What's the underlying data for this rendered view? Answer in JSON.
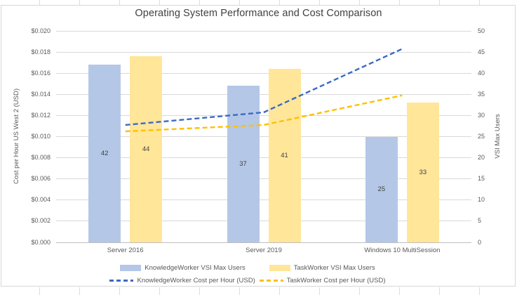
{
  "title": "Operating System Performance and Cost Comparison",
  "chart_data": {
    "type": "combo-bar-line",
    "title": "Operating System Performance and Cost Comparison",
    "categories": [
      "Server 2016",
      "Server 2019",
      "Windows 10 MultiSession"
    ],
    "bar_series": [
      {
        "name": "KnowledgeWorker VSI Max Users",
        "axis": "right",
        "color": "#B4C7E7",
        "values": [
          42,
          37,
          25
        ]
      },
      {
        "name": "TaskWorker VSI Max Users",
        "axis": "right",
        "color": "#FFE699",
        "values": [
          44,
          41,
          33
        ]
      }
    ],
    "line_series": [
      {
        "name": "KnowledgeWorker Cost per Hour (USD)",
        "axis": "left",
        "color": "#3A6AC5",
        "dash": true,
        "values": [
          0.0111,
          0.0123,
          0.0183
        ]
      },
      {
        "name": "TaskWorker Cost per Hour (USD)",
        "axis": "left",
        "color": "#FFC000",
        "dash": true,
        "values": [
          0.0105,
          0.0111,
          0.0139
        ]
      }
    ],
    "left_axis": {
      "title": "Cost per Hour US West 2 (USD)",
      "min": 0,
      "max": 0.02,
      "step": 0.002,
      "tick_labels": [
        "$0.020",
        "$0.018",
        "$0.016",
        "$0.014",
        "$0.012",
        "$0.010",
        "$0.008",
        "$0.006",
        "$0.004",
        "$0.002",
        "$0.000"
      ]
    },
    "right_axis": {
      "title": "VSI Max Users",
      "min": 0,
      "max": 50,
      "step": 5,
      "tick_labels": [
        "50",
        "45",
        "40",
        "35",
        "30",
        "25",
        "20",
        "15",
        "10",
        "5",
        "0"
      ]
    },
    "data_labels": true,
    "gridlines": true,
    "legend_position": "bottom",
    "colors": {
      "grid": "#D9D9D9",
      "axis_line": "#BFBFBF",
      "tick_text": "#595959",
      "title_text": "#404040"
    }
  }
}
